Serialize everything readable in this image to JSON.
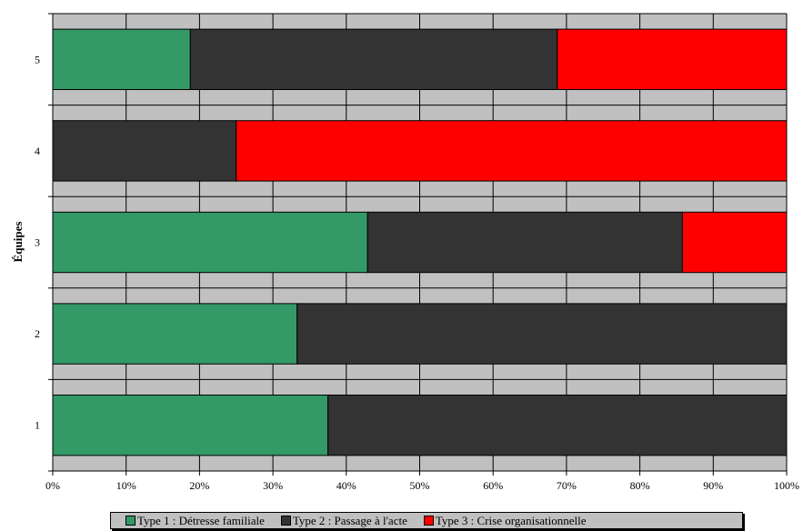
{
  "chart_data": {
    "type": "bar",
    "orientation": "horizontal",
    "stacked": "percent",
    "categories": [
      "1",
      "2",
      "3",
      "4",
      "5"
    ],
    "series": [
      {
        "name": "Type 1 : Détresse familiale",
        "color": "#339966",
        "values": [
          37.5,
          33.3,
          42.9,
          0,
          18.75
        ]
      },
      {
        "name": "Type 2 : Passage à l'acte",
        "color": "#333333",
        "values": [
          62.5,
          66.7,
          42.9,
          25,
          50
        ]
      },
      {
        "name": "Type 3 : Crise organisationnelle",
        "color": "#ff0000",
        "values": [
          0,
          0,
          14.2,
          75,
          31.25
        ]
      }
    ],
    "xticks": [
      "0%",
      "10%",
      "20%",
      "30%",
      "40%",
      "50%",
      "60%",
      "70%",
      "80%",
      "90%",
      "100%"
    ],
    "xlim": [
      0,
      100
    ],
    "ylabel": "Équipes",
    "grid": true,
    "plot_background": "#c0c0c0",
    "legend_position": "bottom"
  }
}
